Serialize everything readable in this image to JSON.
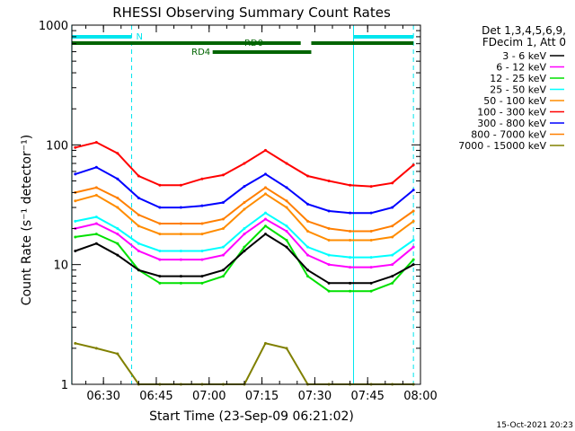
{
  "chart_data": {
    "type": "line",
    "title": "RHESSI Observing Summary Count Rates",
    "xlabel": "Start Time (23-Sep-09 06:21:02)",
    "ylabel": "Count Rate (s⁻¹ detector⁻¹)",
    "yscale": "log",
    "ylim": [
      1,
      1000
    ],
    "xlim": [
      "06:21:02",
      "08:00:00"
    ],
    "x_tick_labels": [
      "06:30",
      "06:45",
      "07:00",
      "07:15",
      "07:30",
      "07:45",
      "08:00"
    ],
    "y_tick_labels": [
      "1",
      "10",
      "100",
      "1000"
    ],
    "timestamp": "15-Oct-2021 20:23",
    "legend": {
      "placement": "right",
      "header": [
        "Det 1,3,4,5,6,9,",
        "FDecim 1, Att 0"
      ]
    },
    "flags": [
      {
        "name": "N",
        "color": "#00e5ee",
        "segments": [
          [
            "06:21",
            "06:38"
          ],
          [
            "07:41",
            "07:58"
          ]
        ]
      },
      {
        "name": "RD0",
        "color": "#006400",
        "segments": [
          [
            "06:21",
            "07:26"
          ],
          [
            "07:29",
            "07:58"
          ]
        ]
      },
      {
        "name": "RD4",
        "color": "#006400",
        "segments": [
          [
            "07:01",
            "07:29"
          ]
        ]
      }
    ],
    "sun_boundaries": [
      "06:21",
      "07:41"
    ],
    "night_boundaries": [
      "06:38",
      "07:58"
    ],
    "series": [
      {
        "name": "3 - 6 keV",
        "color": "#000000",
        "x": [
          "06:22",
          "06:28",
          "06:34",
          "06:40",
          "06:46",
          "06:52",
          "06:58",
          "07:04",
          "07:10",
          "07:16",
          "07:22",
          "07:28",
          "07:34",
          "07:40",
          "07:46",
          "07:52",
          "07:58"
        ],
        "values": [
          13,
          15,
          12,
          9,
          8,
          8,
          8,
          9,
          13,
          18,
          14,
          9,
          7,
          7,
          7,
          8,
          10
        ]
      },
      {
        "name": "6 - 12 keV",
        "color": "#ff00ff",
        "x": [
          "06:22",
          "06:28",
          "06:34",
          "06:40",
          "06:46",
          "06:52",
          "06:58",
          "07:04",
          "07:10",
          "07:16",
          "07:22",
          "07:28",
          "07:34",
          "07:40",
          "07:46",
          "07:52",
          "07:58"
        ],
        "values": [
          20,
          22,
          18,
          13,
          11,
          11,
          11,
          12,
          18,
          24,
          19,
          12,
          10,
          9.5,
          9.5,
          10,
          14
        ]
      },
      {
        "name": "12 - 25 keV",
        "color": "#00e000",
        "x": [
          "06:22",
          "06:28",
          "06:34",
          "06:40",
          "06:46",
          "06:52",
          "06:58",
          "07:04",
          "07:10",
          "07:16",
          "07:22",
          "07:28",
          "07:34",
          "07:40",
          "07:46",
          "07:52",
          "07:58"
        ],
        "values": [
          17,
          18,
          15,
          9,
          7,
          7,
          7,
          8,
          14,
          21,
          16,
          8,
          6,
          6,
          6,
          7,
          11
        ]
      },
      {
        "name": "25 - 50 keV",
        "color": "#00ffff",
        "x": [
          "06:22",
          "06:28",
          "06:34",
          "06:40",
          "06:46",
          "06:52",
          "06:58",
          "07:04",
          "07:10",
          "07:16",
          "07:22",
          "07:28",
          "07:34",
          "07:40",
          "07:46",
          "07:52",
          "07:58"
        ],
        "values": [
          23,
          25,
          20,
          15,
          13,
          13,
          13,
          14,
          20,
          27,
          21,
          14,
          12,
          11.5,
          11.5,
          12,
          16
        ]
      },
      {
        "name": "50 - 100 keV",
        "color": "#ff8c00",
        "x": [
          "06:22",
          "06:28",
          "06:34",
          "06:40",
          "06:46",
          "06:52",
          "06:58",
          "07:04",
          "07:10",
          "07:16",
          "07:22",
          "07:28",
          "07:34",
          "07:40",
          "07:46",
          "07:52",
          "07:58"
        ],
        "values": [
          34,
          38,
          30,
          21,
          18,
          18,
          18,
          20,
          29,
          39,
          30,
          19,
          16,
          16,
          16,
          17,
          23
        ]
      },
      {
        "name": "100 - 300 keV",
        "color": "#ff0000",
        "x": [
          "06:22",
          "06:28",
          "06:34",
          "06:40",
          "06:46",
          "06:52",
          "06:58",
          "07:04",
          "07:10",
          "07:16",
          "07:22",
          "07:28",
          "07:34",
          "07:40",
          "07:46",
          "07:52",
          "07:58"
        ],
        "values": [
          95,
          105,
          85,
          55,
          46,
          46,
          52,
          56,
          70,
          90,
          70,
          55,
          50,
          46,
          45,
          48,
          68
        ]
      },
      {
        "name": "300 - 800 keV",
        "color": "#0000ff",
        "x": [
          "06:22",
          "06:28",
          "06:34",
          "06:40",
          "06:46",
          "06:52",
          "06:58",
          "07:04",
          "07:10",
          "07:16",
          "07:22",
          "07:28",
          "07:34",
          "07:40",
          "07:46",
          "07:52",
          "07:58"
        ],
        "values": [
          57,
          65,
          52,
          36,
          30,
          30,
          31,
          33,
          45,
          57,
          44,
          32,
          28,
          27,
          27,
          30,
          42
        ]
      },
      {
        "name": "800 - 7000 keV",
        "color": "#ff7f00",
        "x": [
          "06:22",
          "06:28",
          "06:34",
          "06:40",
          "06:46",
          "06:52",
          "06:58",
          "07:04",
          "07:10",
          "07:16",
          "07:22",
          "07:28",
          "07:34",
          "07:40",
          "07:46",
          "07:52",
          "07:58"
        ],
        "values": [
          40,
          44,
          36,
          26,
          22,
          22,
          22,
          24,
          33,
          44,
          34,
          23,
          20,
          19,
          19,
          21,
          28
        ]
      },
      {
        "name": "7000 - 15000 keV",
        "color": "#808000",
        "x": [
          "06:22",
          "06:28",
          "06:34",
          "06:40",
          "06:46",
          "06:52",
          "06:58",
          "07:04",
          "07:10",
          "07:16",
          "07:22",
          "07:28",
          "07:34",
          "07:40",
          "07:46",
          "07:52",
          "07:58"
        ],
        "values": [
          2.2,
          2.0,
          1.8,
          1.0,
          1.0,
          1.0,
          1.0,
          1.0,
          1.0,
          2.2,
          2.0,
          1.0,
          1.0,
          1.0,
          1.0,
          1.0,
          1.0
        ]
      }
    ]
  }
}
